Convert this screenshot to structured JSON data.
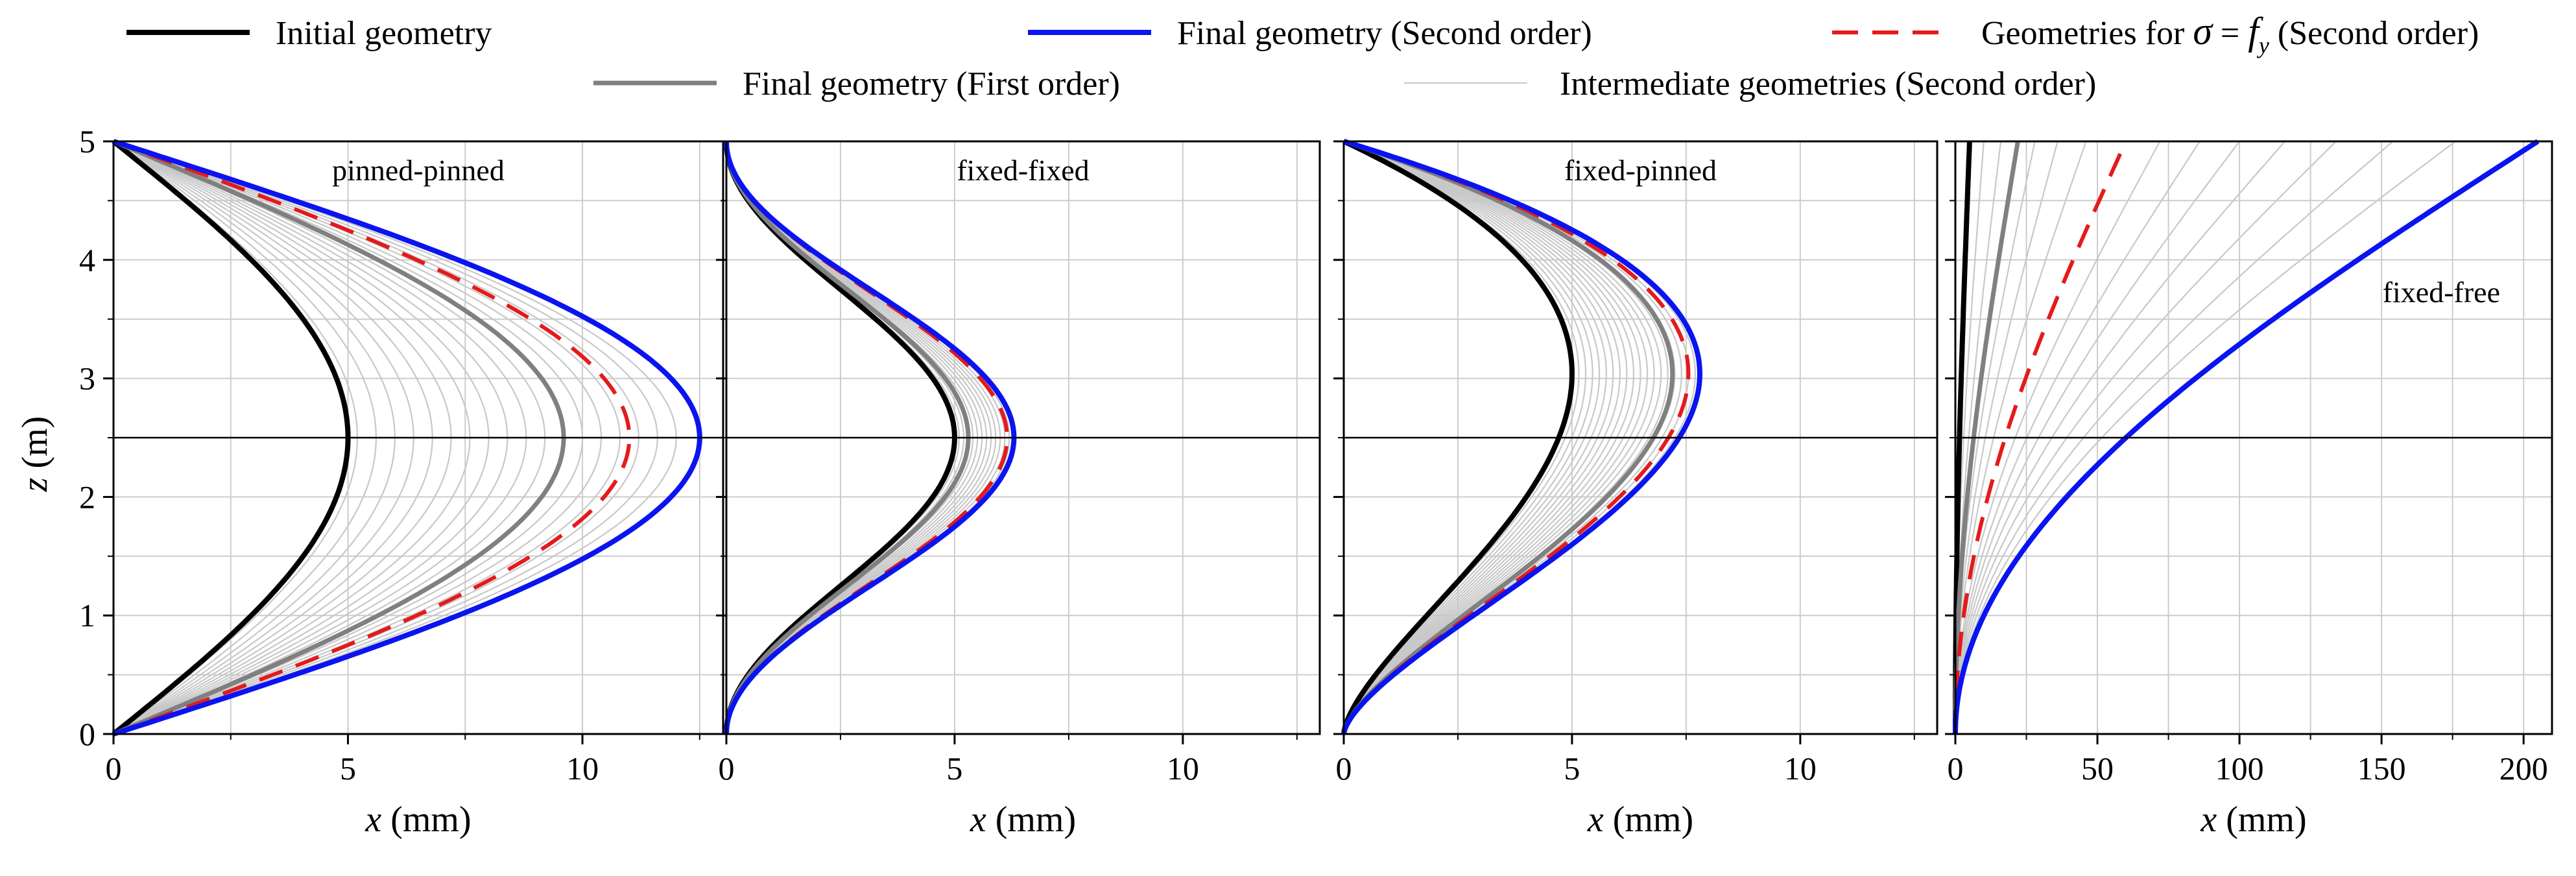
{
  "legend": {
    "initial": "Initial geometry",
    "final_second": "Final geometry (Second order)",
    "sigma_prefix": "Geometries for ",
    "sigma_symbol": "σ",
    "sigma_eq": " = ",
    "sigma_f": "f",
    "sigma_sub": "y",
    "sigma_suffix": " (Second order)",
    "final_first": "Final geometry (First order)",
    "intermediate": "Intermediate geometries (Second order)"
  },
  "colors": {
    "initial": "#000000",
    "final_second": "#0a14f0",
    "sigma": "#e41a1c",
    "final_first": "#808080",
    "intermediate": "#c8c8c8",
    "grid": "#cccccc"
  },
  "axes": {
    "ylabel_var": "z",
    "ylabel_unit": " (m)",
    "xlabel_var": "x",
    "xlabel_unit": " (mm)",
    "ylim": [
      0,
      5
    ],
    "yticks": [
      "0",
      "1",
      "2",
      "3",
      "4",
      "5"
    ]
  },
  "chart_data": [
    {
      "type": "line",
      "title": "pinned-pinned",
      "xlim": [
        0,
        13
      ],
      "xticks": [
        0,
        5,
        10
      ],
      "xtick_labels": [
        "0",
        "5",
        "10"
      ],
      "show_ylabels": true,
      "mode": "sine",
      "reference_line_z": 2.5,
      "series": [
        {
          "name": "Initial geometry",
          "amplitude": 5.0
        },
        {
          "name": "Final geometry (First order)",
          "amplitude": 9.6
        },
        {
          "name": "Geometries for σ = fy (Second order)",
          "amplitude": 11.0
        },
        {
          "name": "Final geometry (Second order)",
          "amplitude": 12.5
        }
      ],
      "intermediate": [
        5.2,
        5.6,
        6.0,
        6.4,
        6.8,
        7.2,
        7.6,
        8.0,
        8.4,
        8.8,
        9.2,
        9.6,
        10.0,
        10.4,
        10.8,
        11.2,
        11.6,
        12.0
      ]
    },
    {
      "type": "line",
      "title": "fixed-fixed",
      "xlim": [
        0,
        13
      ],
      "xticks": [
        0,
        5,
        10
      ],
      "xtick_labels": [
        "0",
        "5",
        "10"
      ],
      "show_ylabels": false,
      "mode": "cosine",
      "reference_line_z": 2.5,
      "series": [
        {
          "name": "Initial geometry",
          "amplitude": 5.0
        },
        {
          "name": "Final geometry (First order)",
          "amplitude": 5.3
        },
        {
          "name": "Geometries for σ = fy (Second order)",
          "amplitude": 6.15
        },
        {
          "name": "Final geometry (Second order)",
          "amplitude": 6.3
        }
      ],
      "intermediate": [
        5.1,
        5.2,
        5.3,
        5.4,
        5.5,
        5.6,
        5.7,
        5.8,
        5.9,
        6.0,
        6.1,
        6.2
      ]
    },
    {
      "type": "line",
      "title": "fixed-pinned",
      "xlim": [
        0,
        13
      ],
      "xticks": [
        0,
        5,
        10
      ],
      "xtick_labels": [
        "0",
        "5",
        "10"
      ],
      "show_ylabels": false,
      "mode": "fixedpinned",
      "reference_line_z": 2.5,
      "series": [
        {
          "name": "Initial geometry",
          "amplitude": 5.0
        },
        {
          "name": "Final geometry (First order)",
          "amplitude": 7.2
        },
        {
          "name": "Geometries for σ = fy (Second order)",
          "amplitude": 7.55
        },
        {
          "name": "Final geometry (Second order)",
          "amplitude": 7.8
        }
      ],
      "intermediate": [
        5.15,
        5.3,
        5.45,
        5.6,
        5.75,
        5.9,
        6.05,
        6.2,
        6.35,
        6.5,
        6.65,
        6.8,
        6.95,
        7.1,
        7.25,
        7.4,
        7.55,
        7.7
      ]
    },
    {
      "type": "line",
      "title": "fixed-free",
      "xlim": [
        0,
        210
      ],
      "xticks": [
        0,
        50,
        100,
        150,
        200
      ],
      "xtick_labels": [
        "0",
        "50",
        "100",
        "150",
        "200"
      ],
      "show_ylabels": false,
      "mode": "cantilever",
      "reference_line_z": 2.5,
      "series": [
        {
          "name": "Initial geometry",
          "amplitude": 5.0
        },
        {
          "name": "Final geometry (First order)",
          "amplitude": 22.0
        },
        {
          "name": "Geometries for σ = fy (Second order)",
          "amplitude": 60.0
        },
        {
          "name": "Final geometry (Second order)",
          "amplitude": 205.0
        }
      ],
      "intermediate": [
        10,
        16,
        28,
        36,
        46,
        72,
        86,
        100,
        116,
        134,
        154,
        176
      ]
    }
  ]
}
